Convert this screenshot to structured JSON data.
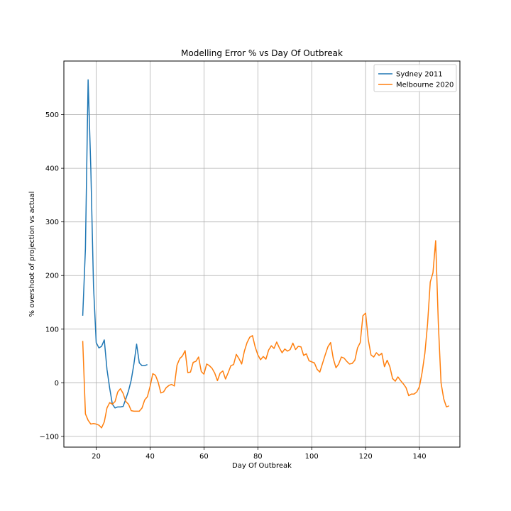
{
  "chart_data": {
    "type": "line",
    "title": "Modelling Error % vs Day Of Outbreak",
    "xlabel": "Day Of Outbreak",
    "ylabel": "% overshoot of projection vs actual",
    "xlim": [
      8,
      155
    ],
    "ylim": [
      -120,
      600
    ],
    "xticks": [
      20,
      40,
      60,
      80,
      100,
      120,
      140
    ],
    "yticks": [
      -100,
      0,
      100,
      200,
      300,
      400,
      500
    ],
    "grid": true,
    "legend_position": "top-right",
    "series": [
      {
        "name": "Sydney 2011",
        "color": "#1f77b4",
        "x": [
          15,
          16,
          17,
          18,
          19,
          20,
          21,
          22,
          23,
          24,
          25,
          26,
          27,
          28,
          29,
          30,
          31,
          32,
          33,
          34,
          35,
          36,
          37,
          38,
          39
        ],
        "y": [
          125,
          250,
          565,
          400,
          180,
          75,
          65,
          68,
          80,
          25,
          -10,
          -40,
          -47,
          -45,
          -45,
          -44,
          -30,
          -15,
          5,
          35,
          72,
          37,
          32,
          32,
          34
        ]
      },
      {
        "name": "Melbourne 2020",
        "color": "#ff7f0e",
        "x": [
          15,
          16,
          17,
          18,
          19,
          20,
          21,
          22,
          23,
          24,
          25,
          26,
          27,
          28,
          29,
          30,
          31,
          32,
          33,
          34,
          35,
          36,
          37,
          38,
          39,
          40,
          41,
          42,
          43,
          44,
          45,
          46,
          47,
          48,
          49,
          50,
          51,
          52,
          53,
          54,
          55,
          56,
          57,
          58,
          59,
          60,
          61,
          62,
          63,
          64,
          65,
          66,
          67,
          68,
          69,
          70,
          71,
          72,
          73,
          74,
          75,
          76,
          77,
          78,
          79,
          80,
          81,
          82,
          83,
          84,
          85,
          86,
          87,
          88,
          89,
          90,
          91,
          92,
          93,
          94,
          95,
          96,
          97,
          98,
          99,
          100,
          101,
          102,
          103,
          104,
          105,
          106,
          107,
          108,
          109,
          110,
          111,
          112,
          113,
          114,
          115,
          116,
          117,
          118,
          119,
          120,
          121,
          122,
          123,
          124,
          125,
          126,
          127,
          128,
          129,
          130,
          131,
          132,
          133,
          134,
          135,
          136,
          137,
          138,
          139,
          140,
          141,
          142,
          143,
          144,
          145,
          146,
          147,
          148,
          149,
          150,
          151
        ],
        "y": [
          78,
          -58,
          -70,
          -77,
          -76,
          -77,
          -79,
          -84,
          -73,
          -47,
          -37,
          -40,
          -35,
          -17,
          -11,
          -20,
          -35,
          -40,
          -52,
          -53,
          -53,
          -53,
          -47,
          -32,
          -26,
          -7,
          17,
          14,
          1,
          -19,
          -17,
          -9,
          -5,
          -3,
          -6,
          33,
          45,
          50,
          60,
          19,
          20,
          38,
          40,
          48,
          21,
          16,
          35,
          32,
          27,
          18,
          4,
          18,
          22,
          7,
          19,
          32,
          34,
          53,
          45,
          35,
          59,
          75,
          85,
          88,
          67,
          52,
          43,
          49,
          44,
          61,
          69,
          64,
          76,
          65,
          56,
          63,
          59,
          62,
          74,
          62,
          68,
          67,
          51,
          54,
          41,
          39,
          37,
          25,
          20,
          36,
          52,
          67,
          75,
          45,
          28,
          35,
          48,
          46,
          40,
          35,
          36,
          42,
          65,
          75,
          125,
          130,
          80,
          52,
          48,
          56,
          51,
          55,
          30,
          42,
          30,
          8,
          3,
          11,
          4,
          -2,
          -9,
          -24,
          -21,
          -21,
          -17,
          -7,
          20,
          55,
          110,
          188,
          205,
          265,
          110,
          0,
          -30,
          -45,
          -43
        ]
      }
    ]
  }
}
